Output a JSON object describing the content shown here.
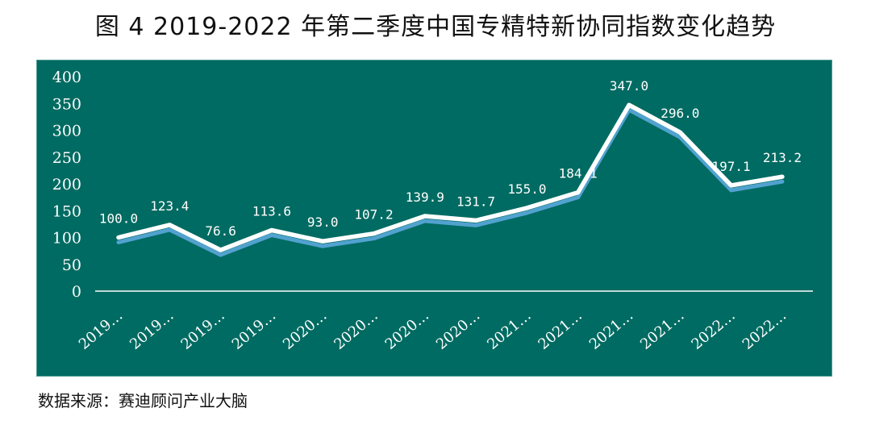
{
  "figure": {
    "title": "图 4 2019-2022 年第二季度中国专精特新协同指数变化趋势",
    "source": "数据来源：赛迪顾问产业大脑"
  },
  "colors": {
    "panel_background": "#006b62",
    "line_main": "#ffffff",
    "line_shadow": "#5aa9dc",
    "drop_line": "#8fd3cf",
    "axis": "#ffffff"
  },
  "chart_data": {
    "type": "line",
    "title": "图 4 2019-2022 年第二季度中国专精特新协同指数变化趋势",
    "categories": [
      "2019…",
      "2019…",
      "2019…",
      "2019…",
      "2020…",
      "2020…",
      "2020…",
      "2020…",
      "2021…",
      "2021…",
      "2021…",
      "2021…",
      "2022…",
      "2022…"
    ],
    "values": [
      100.0,
      123.4,
      76.6,
      113.6,
      93.0,
      107.2,
      139.9,
      131.7,
      155.0,
      184.1,
      347.0,
      296.0,
      197.1,
      213.2
    ],
    "value_labels": [
      "100.0",
      "123.4",
      "76.6",
      "113.6",
      "93.0",
      "107.2",
      "139.9",
      "131.7",
      "155.0",
      "184.1",
      "347.0",
      "296.0",
      "197.1",
      "213.2"
    ],
    "yticks": [
      "0",
      "50",
      "100",
      "150",
      "200",
      "250",
      "300",
      "350",
      "400"
    ],
    "ylim": [
      0,
      400
    ],
    "xlabel": "",
    "ylabel": "",
    "grid": false,
    "legend": "none"
  }
}
